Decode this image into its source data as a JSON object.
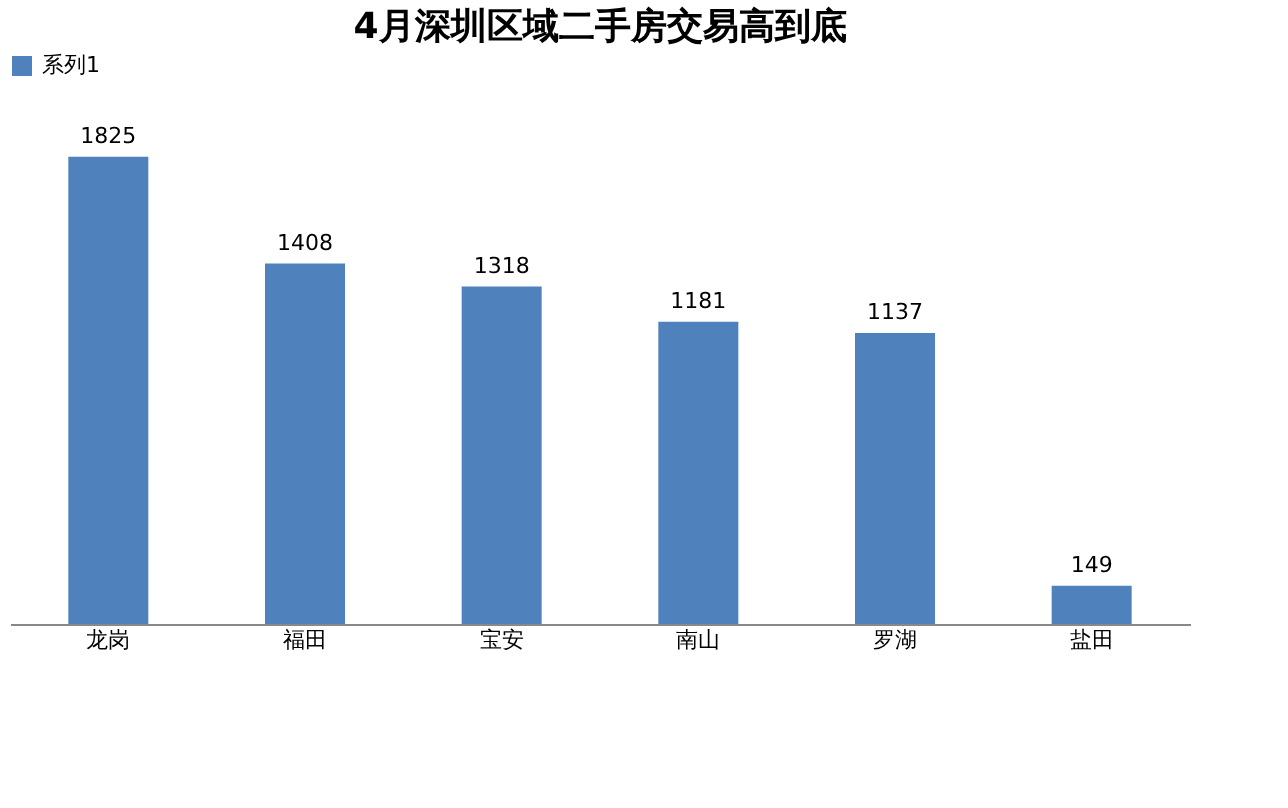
{
  "chart_data": {
    "type": "bar",
    "title": "4月深圳区域二手房交易高到底",
    "categories": [
      "龙岗",
      "福田",
      "宝安",
      "南山",
      "罗湖",
      "盐田"
    ],
    "series": [
      {
        "name": "系列1",
        "color": "#4f81bd",
        "values": [
          1825,
          1408,
          1318,
          1181,
          1137,
          149
        ]
      }
    ],
    "data_labels": true,
    "legend": "top",
    "grid": false,
    "tick_labels": "x"
  }
}
